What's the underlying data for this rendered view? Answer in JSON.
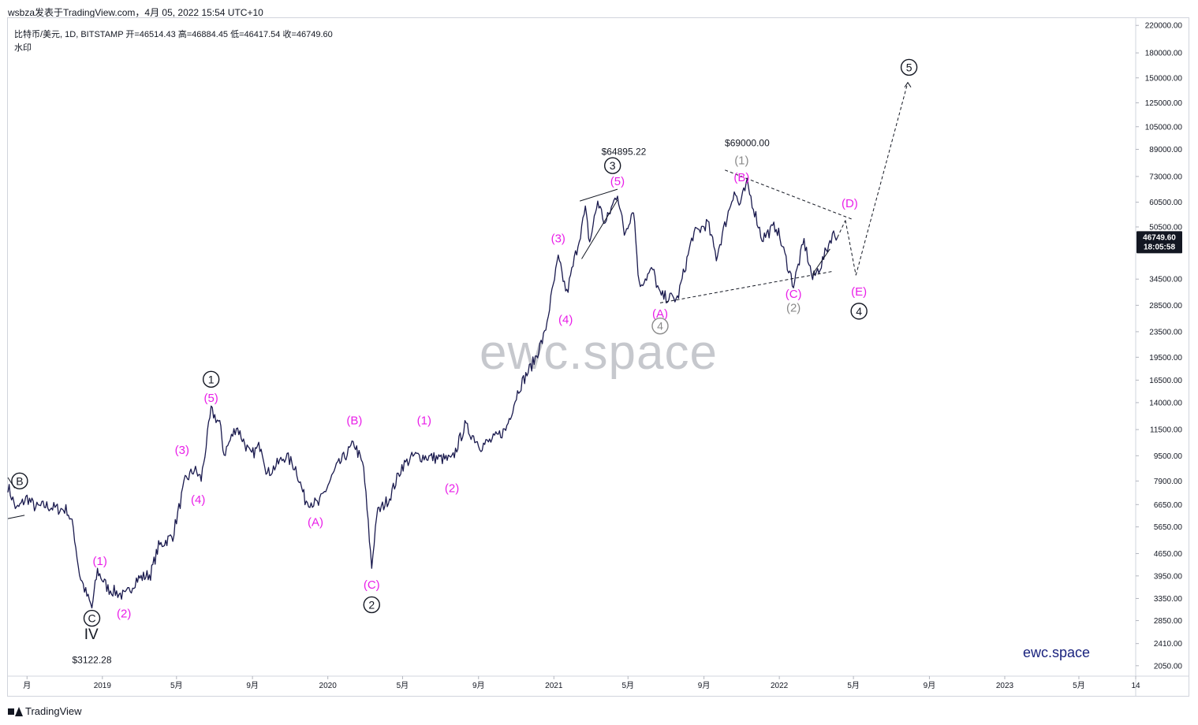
{
  "header": {
    "published": "wsbza发表于TradingView.com，4月 05, 2022 15:54 UTC+10",
    "symbol_line": "比特币/美元, 1D, BITSTAMP  开=46514.43  高=46884.45  低=46417.54  收=46749.60",
    "watermark_label": "水印"
  },
  "watermark": "ewc.space",
  "brand": "ewc.space",
  "footer": {
    "logo_text": "TradingView"
  },
  "price_badge": {
    "price": "46749.60",
    "countdown": "18:05:58",
    "color": "#131722"
  },
  "colors": {
    "candles": "#1a1a4e",
    "magenta": "#e91ee8",
    "grey": "#8a8a8a",
    "black": "#131722"
  },
  "chart_data": {
    "type": "line",
    "scale": "log",
    "ylim": [
      1900,
      232000
    ],
    "xlim": [
      "2018-08-01",
      "2023-08-01"
    ],
    "y_ticks": [
      220000,
      180000,
      150000,
      125000,
      105000,
      89000,
      73000,
      60500,
      50500,
      34500,
      28500,
      23500,
      19500,
      16500,
      14000,
      11500,
      9500,
      7900,
      6650,
      5650,
      4650,
      3950,
      3350,
      2850,
      2410,
      2050
    ],
    "y_tick_labels": [
      "220000.00",
      "180000.00",
      "150000.00",
      "125000.00",
      "105000.00",
      "89000.00",
      "73000.00",
      "60500.00",
      "50500.00",
      "34500.00",
      "28500.00",
      "23500.00",
      "19500.00",
      "16500.00",
      "14000.00",
      "11500.00",
      "9500.00",
      "7900.00",
      "6650.00",
      "5650.00",
      "4650.00",
      "3950.00",
      "3350.00",
      "2850.00",
      "2410.00",
      "2050.00"
    ],
    "x_ticks": [
      {
        "date": "2018-09-01",
        "label": "月"
      },
      {
        "date": "2019-01-01",
        "label": "2019"
      },
      {
        "date": "2019-05-01",
        "label": "5月"
      },
      {
        "date": "2019-09-01",
        "label": "9月"
      },
      {
        "date": "2020-01-01",
        "label": "2020"
      },
      {
        "date": "2020-05-01",
        "label": "5月"
      },
      {
        "date": "2020-09-01",
        "label": "9月"
      },
      {
        "date": "2021-01-01",
        "label": "2021"
      },
      {
        "date": "2021-05-01",
        "label": "5月"
      },
      {
        "date": "2021-09-01",
        "label": "9月"
      },
      {
        "date": "2022-01-01",
        "label": "2022"
      },
      {
        "date": "2022-05-01",
        "label": "5月"
      },
      {
        "date": "2022-09-01",
        "label": "9月"
      },
      {
        "date": "2023-01-01",
        "label": "2023"
      },
      {
        "date": "2023-05-01",
        "label": "5月"
      },
      {
        "date": "2023-08-01",
        "label": "14"
      }
    ],
    "series": [
      {
        "points": [
          [
            "2018-08-01",
            7600
          ],
          [
            "2018-08-15",
            6400
          ],
          [
            "2018-09-01",
            7000
          ],
          [
            "2018-09-15",
            6500
          ],
          [
            "2018-10-01",
            6600
          ],
          [
            "2018-10-20",
            6450
          ],
          [
            "2018-11-05",
            6400
          ],
          [
            "2018-11-15",
            5600
          ],
          [
            "2018-11-25",
            4000
          ],
          [
            "2018-12-05",
            3500
          ],
          [
            "2018-12-15",
            3122
          ],
          [
            "2018-12-24",
            4100
          ],
          [
            "2019-01-10",
            3600
          ],
          [
            "2019-02-07",
            3400
          ],
          [
            "2019-02-25",
            3850
          ],
          [
            "2019-03-20",
            4000
          ],
          [
            "2019-04-02",
            4900
          ],
          [
            "2019-04-25",
            5300
          ],
          [
            "2019-05-15",
            7900
          ],
          [
            "2019-05-30",
            8600
          ],
          [
            "2019-06-10",
            8000
          ],
          [
            "2019-06-26",
            13200
          ],
          [
            "2019-07-10",
            12000
          ],
          [
            "2019-07-17",
            9600
          ],
          [
            "2019-08-06",
            11800
          ],
          [
            "2019-08-29",
            9500
          ],
          [
            "2019-09-15",
            10300
          ],
          [
            "2019-09-25",
            8300
          ],
          [
            "2019-10-25",
            9500
          ],
          [
            "2019-11-10",
            8700
          ],
          [
            "2019-11-25",
            6900
          ],
          [
            "2019-12-17",
            6650
          ],
          [
            "2020-01-15",
            8700
          ],
          [
            "2020-02-13",
            10400
          ],
          [
            "2020-02-28",
            8700
          ],
          [
            "2020-03-12",
            4200
          ],
          [
            "2020-03-20",
            6200
          ],
          [
            "2020-04-10",
            7000
          ],
          [
            "2020-04-30",
            8800
          ],
          [
            "2020-05-20",
            9500
          ],
          [
            "2020-06-15",
            9400
          ],
          [
            "2020-07-20",
            9200
          ],
          [
            "2020-08-10",
            11800
          ],
          [
            "2020-09-05",
            10200
          ],
          [
            "2020-09-25",
            10700
          ],
          [
            "2020-10-15",
            11500
          ],
          [
            "2020-11-05",
            15500
          ],
          [
            "2020-11-30",
            19000
          ],
          [
            "2020-12-17",
            23000
          ],
          [
            "2021-01-08",
            40000
          ],
          [
            "2021-01-22",
            31000
          ],
          [
            "2021-02-21",
            57000
          ],
          [
            "2021-02-28",
            45000
          ],
          [
            "2021-03-13",
            61000
          ],
          [
            "2021-03-25",
            51500
          ],
          [
            "2021-04-14",
            64895
          ],
          [
            "2021-04-25",
            48000
          ],
          [
            "2021-05-10",
            58000
          ],
          [
            "2021-05-19",
            33000
          ],
          [
            "2021-06-10",
            37000
          ],
          [
            "2021-06-22",
            30500
          ],
          [
            "2021-07-20",
            29800
          ],
          [
            "2021-08-14",
            47500
          ],
          [
            "2021-09-07",
            52000
          ],
          [
            "2021-09-21",
            40500
          ],
          [
            "2021-10-20",
            66000
          ],
          [
            "2021-10-28",
            59000
          ],
          [
            "2021-11-10",
            69000
          ],
          [
            "2021-12-04",
            46500
          ],
          [
            "2021-12-27",
            51000
          ],
          [
            "2022-01-24",
            33000
          ],
          [
            "2022-02-10",
            45500
          ],
          [
            "2022-02-24",
            34500
          ],
          [
            "2022-03-10",
            38500
          ],
          [
            "2022-03-28",
            48000
          ],
          [
            "2022-04-05",
            46749
          ]
        ]
      }
    ],
    "price_labels": [
      {
        "date": "2018-12-15",
        "price": 3122,
        "text": "$3122.28"
      },
      {
        "date": "2021-04-14",
        "price": 64895,
        "text": "$64895.22"
      },
      {
        "date": "2021-11-10",
        "price": 69000,
        "text": "$69000.00"
      }
    ],
    "wave_labels": [
      {
        "text": "B",
        "style": "circle",
        "color": "#131722",
        "date": "2018-08-20",
        "price": 7900
      },
      {
        "text": "C",
        "style": "circle",
        "color": "#131722",
        "date": "2018-12-15",
        "price": 2900
      },
      {
        "text": "IV",
        "style": "plain",
        "color": "#131722",
        "date": "2018-12-14",
        "price": 2560,
        "size": 19
      },
      {
        "text": "(1)",
        "style": "plain",
        "color": "#e91ee8",
        "date": "2018-12-28",
        "price": 4400
      },
      {
        "text": "(2)",
        "style": "plain",
        "color": "#e91ee8",
        "date": "2019-02-05",
        "price": 3000
      },
      {
        "text": "(3)",
        "style": "plain",
        "color": "#e91ee8",
        "date": "2019-05-10",
        "price": 9900
      },
      {
        "text": "(4)",
        "style": "plain",
        "color": "#e91ee8",
        "date": "2019-06-05",
        "price": 6900
      },
      {
        "text": "(5)",
        "style": "plain",
        "color": "#e91ee8",
        "date": "2019-06-26",
        "price": 14500
      },
      {
        "text": "1",
        "style": "circle",
        "color": "#131722",
        "date": "2019-06-26",
        "price": 16600
      },
      {
        "text": "(A)",
        "style": "plain",
        "color": "#e91ee8",
        "date": "2019-12-12",
        "price": 5850
      },
      {
        "text": "(B)",
        "style": "plain",
        "color": "#e91ee8",
        "date": "2020-02-13",
        "price": 12300
      },
      {
        "text": "(C)",
        "style": "plain",
        "color": "#e91ee8",
        "date": "2020-03-12",
        "price": 3700
      },
      {
        "text": "2",
        "style": "circle",
        "color": "#131722",
        "date": "2020-03-12",
        "price": 3200
      },
      {
        "text": "(1)",
        "style": "plain",
        "color": "#e91ee8",
        "date": "2020-06-05",
        "price": 12300
      },
      {
        "text": "(2)",
        "style": "plain",
        "color": "#e91ee8",
        "date": "2020-07-20",
        "price": 7500
      },
      {
        "text": "(3)",
        "style": "plain",
        "color": "#e91ee8",
        "date": "2021-01-08",
        "price": 46500
      },
      {
        "text": "(4)",
        "style": "plain",
        "color": "#e91ee8",
        "date": "2021-01-20",
        "price": 25700
      },
      {
        "text": "(5)",
        "style": "plain",
        "color": "#e91ee8",
        "date": "2021-04-14",
        "price": 70500
      },
      {
        "text": "3",
        "style": "circle",
        "color": "#131722",
        "date": "2021-04-06",
        "price": 79000
      },
      {
        "text": "(A)",
        "style": "plain",
        "color": "#e91ee8",
        "date": "2021-06-22",
        "price": 26800
      },
      {
        "text": "4",
        "style": "circle",
        "color": "#8a8a8a",
        "date": "2021-06-22",
        "price": 24500
      },
      {
        "text": "(1)",
        "style": "plain",
        "color": "#8a8a8a",
        "date": "2021-11-01",
        "price": 82000
      },
      {
        "text": "(B)",
        "style": "plain",
        "color": "#e91ee8",
        "date": "2021-11-01",
        "price": 72500
      },
      {
        "text": "(C)",
        "style": "plain",
        "color": "#e91ee8",
        "date": "2022-01-24",
        "price": 31000
      },
      {
        "text": "(2)",
        "style": "plain",
        "color": "#8a8a8a",
        "date": "2022-01-24",
        "price": 28000
      },
      {
        "text": "(D)",
        "style": "plain",
        "color": "#e91ee8",
        "date": "2022-04-25",
        "price": 60000
      },
      {
        "text": "(E)",
        "style": "plain",
        "color": "#e91ee8",
        "date": "2022-05-10",
        "price": 31500
      },
      {
        "text": "4",
        "style": "circle",
        "color": "#131722",
        "date": "2022-05-10",
        "price": 27300
      },
      {
        "text": "5",
        "style": "circle",
        "color": "#131722",
        "date": "2022-07-30",
        "price": 162000
      }
    ],
    "trendlines": [
      {
        "style": "solid",
        "from": [
          "2018-08-01",
          6000
        ],
        "to": [
          "2018-08-28",
          6150
        ]
      },
      {
        "style": "solid",
        "from": [
          "2018-08-01",
          8100
        ],
        "to": [
          "2018-08-12",
          7500
        ]
      },
      {
        "style": "solid",
        "from": [
          "2021-02-12",
          61000
        ],
        "to": [
          "2021-04-14",
          66500
        ]
      },
      {
        "style": "solid",
        "from": [
          "2021-02-15",
          40000
        ],
        "to": [
          "2021-04-14",
          61500
        ]
      },
      {
        "style": "solid",
        "from": [
          "2022-02-24",
          35800
        ],
        "to": [
          "2022-03-24",
          43000
        ]
      },
      {
        "style": "dashed",
        "from": [
          "2021-06-22",
          29000
        ],
        "to": [
          "2022-03-28",
          36500
        ]
      },
      {
        "style": "dashed",
        "from": [
          "2021-10-05",
          76500
        ],
        "to": [
          "2022-04-28",
          53500
        ]
      },
      {
        "style": "dashed",
        "from": [
          "2022-04-05",
          46749
        ],
        "to": [
          "2022-04-18",
          53000
        ]
      },
      {
        "style": "dashed",
        "from": [
          "2022-04-18",
          53000
        ],
        "to": [
          "2022-05-05",
          35500
        ]
      },
      {
        "style": "dashed",
        "from": [
          "2022-05-05",
          35500
        ],
        "to": [
          "2022-07-28",
          145000
        ]
      }
    ]
  }
}
